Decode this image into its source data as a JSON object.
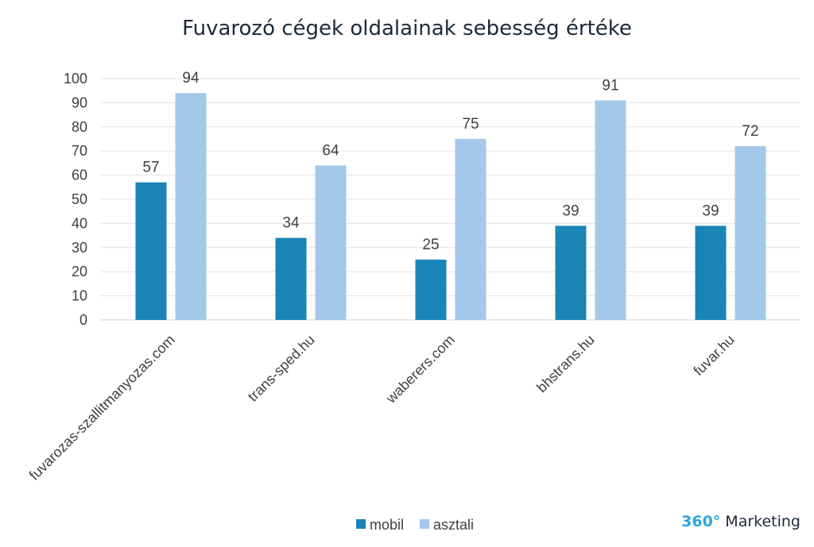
{
  "chart_data": {
    "type": "bar",
    "title": "Fuvarozó cégek oldalainak sebesség értéke",
    "xlabel": "",
    "ylabel": "",
    "categories": [
      "fuvarozas-szallitmanyozas.com",
      "trans-sped.hu",
      "waberers.com",
      "bhstrans.hu",
      "fuvar.hu"
    ],
    "series": [
      {
        "name": "mobil",
        "color": "#1a84b6",
        "values": [
          57,
          34,
          25,
          39,
          39
        ]
      },
      {
        "name": "asztali",
        "color": "#a3c8e9",
        "values": [
          94,
          64,
          75,
          91,
          72
        ]
      }
    ],
    "ylim": [
      0,
      100
    ],
    "yticks": [
      "0",
      "10",
      "20",
      "30",
      "40",
      "50",
      "60",
      "70",
      "80",
      "90",
      "100"
    ],
    "grid": true,
    "legend_position": "bottom",
    "data_labels": true
  },
  "branding": {
    "number": "360°",
    "word": "Marketing",
    "number_color": "#2aa6df"
  }
}
